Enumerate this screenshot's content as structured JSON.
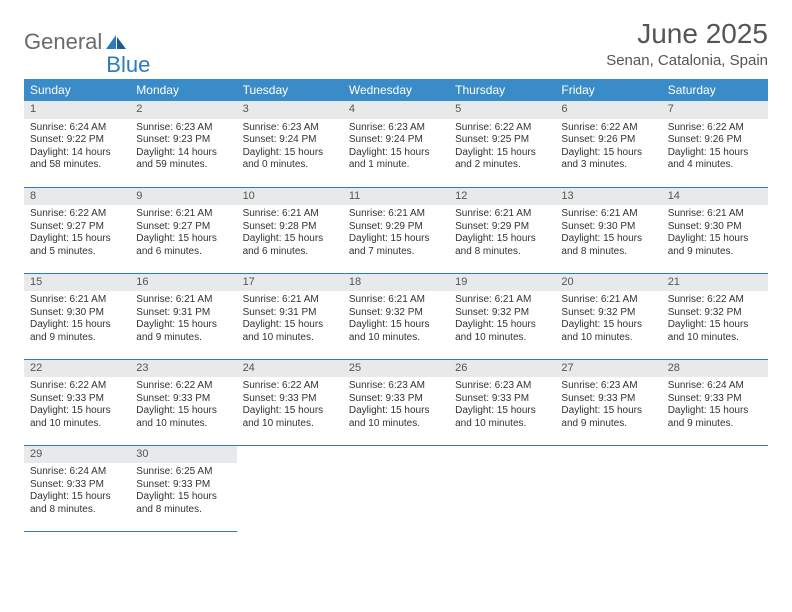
{
  "logo": {
    "t1": "General",
    "t2": "Blue"
  },
  "title": "June 2025",
  "location": "Senan, Catalonia, Spain",
  "colors": {
    "header_bg": "#3a8cc9",
    "header_text": "#ffffff",
    "daynum_bg": "#e8e9ea",
    "rule": "#2b7bbd",
    "text": "#333333",
    "logo_gray": "#6a6a6a",
    "logo_blue": "#2b7bbd"
  },
  "weekdays": [
    "Sunday",
    "Monday",
    "Tuesday",
    "Wednesday",
    "Thursday",
    "Friday",
    "Saturday"
  ],
  "weeks": [
    [
      {
        "n": "1",
        "sr": "6:24 AM",
        "ss": "9:22 PM",
        "dl": "14 hours and 58 minutes."
      },
      {
        "n": "2",
        "sr": "6:23 AM",
        "ss": "9:23 PM",
        "dl": "14 hours and 59 minutes."
      },
      {
        "n": "3",
        "sr": "6:23 AM",
        "ss": "9:24 PM",
        "dl": "15 hours and 0 minutes."
      },
      {
        "n": "4",
        "sr": "6:23 AM",
        "ss": "9:24 PM",
        "dl": "15 hours and 1 minute."
      },
      {
        "n": "5",
        "sr": "6:22 AM",
        "ss": "9:25 PM",
        "dl": "15 hours and 2 minutes."
      },
      {
        "n": "6",
        "sr": "6:22 AM",
        "ss": "9:26 PM",
        "dl": "15 hours and 3 minutes."
      },
      {
        "n": "7",
        "sr": "6:22 AM",
        "ss": "9:26 PM",
        "dl": "15 hours and 4 minutes."
      }
    ],
    [
      {
        "n": "8",
        "sr": "6:22 AM",
        "ss": "9:27 PM",
        "dl": "15 hours and 5 minutes."
      },
      {
        "n": "9",
        "sr": "6:21 AM",
        "ss": "9:27 PM",
        "dl": "15 hours and 6 minutes."
      },
      {
        "n": "10",
        "sr": "6:21 AM",
        "ss": "9:28 PM",
        "dl": "15 hours and 6 minutes."
      },
      {
        "n": "11",
        "sr": "6:21 AM",
        "ss": "9:29 PM",
        "dl": "15 hours and 7 minutes."
      },
      {
        "n": "12",
        "sr": "6:21 AM",
        "ss": "9:29 PM",
        "dl": "15 hours and 8 minutes."
      },
      {
        "n": "13",
        "sr": "6:21 AM",
        "ss": "9:30 PM",
        "dl": "15 hours and 8 minutes."
      },
      {
        "n": "14",
        "sr": "6:21 AM",
        "ss": "9:30 PM",
        "dl": "15 hours and 9 minutes."
      }
    ],
    [
      {
        "n": "15",
        "sr": "6:21 AM",
        "ss": "9:30 PM",
        "dl": "15 hours and 9 minutes."
      },
      {
        "n": "16",
        "sr": "6:21 AM",
        "ss": "9:31 PM",
        "dl": "15 hours and 9 minutes."
      },
      {
        "n": "17",
        "sr": "6:21 AM",
        "ss": "9:31 PM",
        "dl": "15 hours and 10 minutes."
      },
      {
        "n": "18",
        "sr": "6:21 AM",
        "ss": "9:32 PM",
        "dl": "15 hours and 10 minutes."
      },
      {
        "n": "19",
        "sr": "6:21 AM",
        "ss": "9:32 PM",
        "dl": "15 hours and 10 minutes."
      },
      {
        "n": "20",
        "sr": "6:21 AM",
        "ss": "9:32 PM",
        "dl": "15 hours and 10 minutes."
      },
      {
        "n": "21",
        "sr": "6:22 AM",
        "ss": "9:32 PM",
        "dl": "15 hours and 10 minutes."
      }
    ],
    [
      {
        "n": "22",
        "sr": "6:22 AM",
        "ss": "9:33 PM",
        "dl": "15 hours and 10 minutes."
      },
      {
        "n": "23",
        "sr": "6:22 AM",
        "ss": "9:33 PM",
        "dl": "15 hours and 10 minutes."
      },
      {
        "n": "24",
        "sr": "6:22 AM",
        "ss": "9:33 PM",
        "dl": "15 hours and 10 minutes."
      },
      {
        "n": "25",
        "sr": "6:23 AM",
        "ss": "9:33 PM",
        "dl": "15 hours and 10 minutes."
      },
      {
        "n": "26",
        "sr": "6:23 AM",
        "ss": "9:33 PM",
        "dl": "15 hours and 10 minutes."
      },
      {
        "n": "27",
        "sr": "6:23 AM",
        "ss": "9:33 PM",
        "dl": "15 hours and 9 minutes."
      },
      {
        "n": "28",
        "sr": "6:24 AM",
        "ss": "9:33 PM",
        "dl": "15 hours and 9 minutes."
      }
    ],
    [
      {
        "n": "29",
        "sr": "6:24 AM",
        "ss": "9:33 PM",
        "dl": "15 hours and 8 minutes."
      },
      {
        "n": "30",
        "sr": "6:25 AM",
        "ss": "9:33 PM",
        "dl": "15 hours and 8 minutes."
      },
      null,
      null,
      null,
      null,
      null
    ]
  ],
  "labels": {
    "sunrise": "Sunrise: ",
    "sunset": "Sunset: ",
    "daylight": "Daylight: "
  }
}
